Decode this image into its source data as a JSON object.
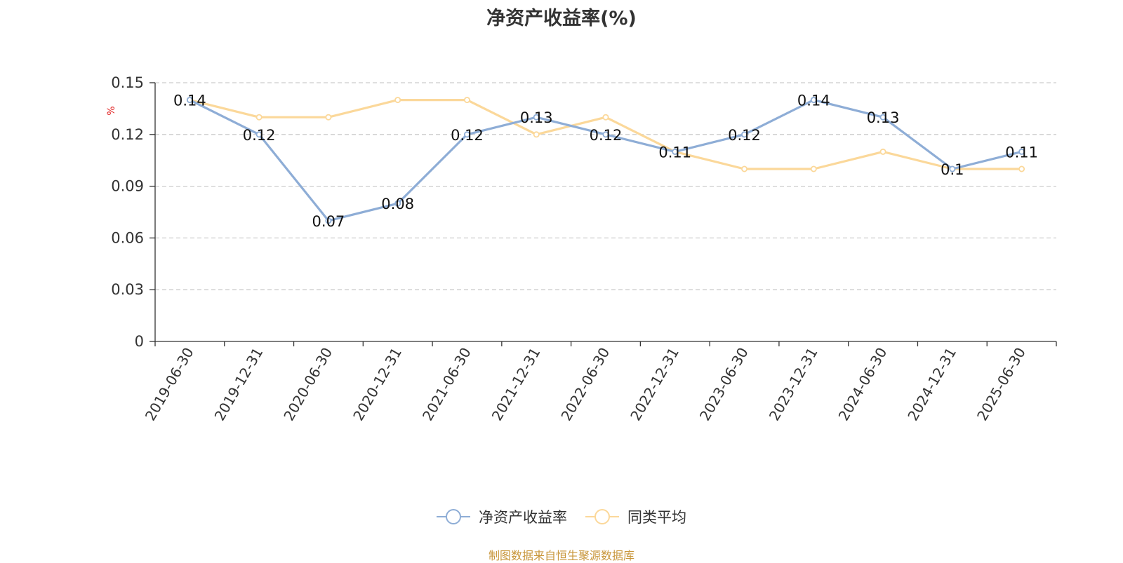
{
  "chart_data": {
    "type": "line",
    "title": "净资产收益率(%)",
    "ylabel": "%",
    "xlabel": "",
    "categories": [
      "2019-06-30",
      "2019-12-31",
      "2020-06-30",
      "2020-12-31",
      "2021-06-30",
      "2021-12-31",
      "2022-06-30",
      "2022-12-31",
      "2023-06-30",
      "2023-12-31",
      "2024-06-30",
      "2024-12-31",
      "2025-06-30"
    ],
    "ylim": [
      0,
      0.15
    ],
    "yticks": [
      "0",
      "0.03",
      "0.06",
      "0.09",
      "0.12",
      "0.15"
    ],
    "grid": true,
    "legend_position": "bottom-center",
    "series": [
      {
        "name": "净资产收益率",
        "color": "#8eadd6",
        "values": [
          0.14,
          0.12,
          0.07,
          0.08,
          0.12,
          0.13,
          0.12,
          0.11,
          0.12,
          0.14,
          0.13,
          0.1,
          0.11
        ],
        "labels": [
          "0.14",
          "0.12",
          "0.07",
          "0.08",
          "0.12",
          "0.13",
          "0.12",
          "0.11",
          "0.12",
          "0.14",
          "0.13",
          "0.1",
          "0.11"
        ]
      },
      {
        "name": "同类平均",
        "color": "#fbd89a",
        "values": [
          0.14,
          0.13,
          0.13,
          0.14,
          0.14,
          0.12,
          0.13,
          0.11,
          0.1,
          0.1,
          0.11,
          0.1,
          0.1
        ]
      }
    ]
  },
  "source": "制图数据来自恒生聚源数据库"
}
